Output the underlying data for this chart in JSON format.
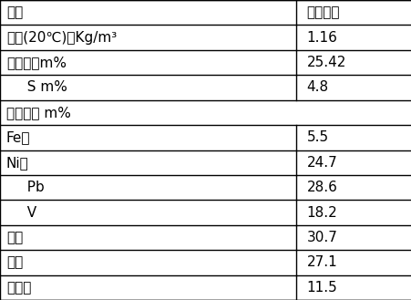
{
  "rows": [
    {
      "col1": "项目",
      "col2": "分析结果",
      "is_header": true,
      "indent": 0
    },
    {
      "col1": "密度(20℃)，Kg/m³",
      "col2": "1.16",
      "is_header": false,
      "indent": 0
    },
    {
      "col1": "残炭值，m%",
      "col2": "25.42",
      "is_header": false,
      "indent": 0
    },
    {
      "col1": "  S m%",
      "col2": "4.8",
      "is_header": false,
      "indent": 1
    },
    {
      "col1": "金属含量 m%",
      "col2": "",
      "is_header": false,
      "indent": 0,
      "no_divider": true
    },
    {
      "col1": "Fe，",
      "col2": "5.5",
      "is_header": false,
      "indent": 0
    },
    {
      "col1": "Ni，",
      "col2": "24.7",
      "is_header": false,
      "indent": 0
    },
    {
      "col1": "  Pb",
      "col2": "28.6",
      "is_header": false,
      "indent": 1
    },
    {
      "col1": "  V",
      "col2": "18.2",
      "is_header": false,
      "indent": 1
    },
    {
      "col1": "芳烃",
      "col2": "30.7",
      "is_header": false,
      "indent": 0
    },
    {
      "col1": "胶质",
      "col2": "27.1",
      "is_header": false,
      "indent": 0
    },
    {
      "col1": "沥青质",
      "col2": "11.5",
      "is_header": false,
      "indent": 0
    }
  ],
  "col_split": 0.72,
  "bg_color": "#ffffff",
  "border_color": "#000000",
  "text_color": "#000000",
  "header_fontsize": 11,
  "body_fontsize": 11,
  "font_family": "SimSun"
}
